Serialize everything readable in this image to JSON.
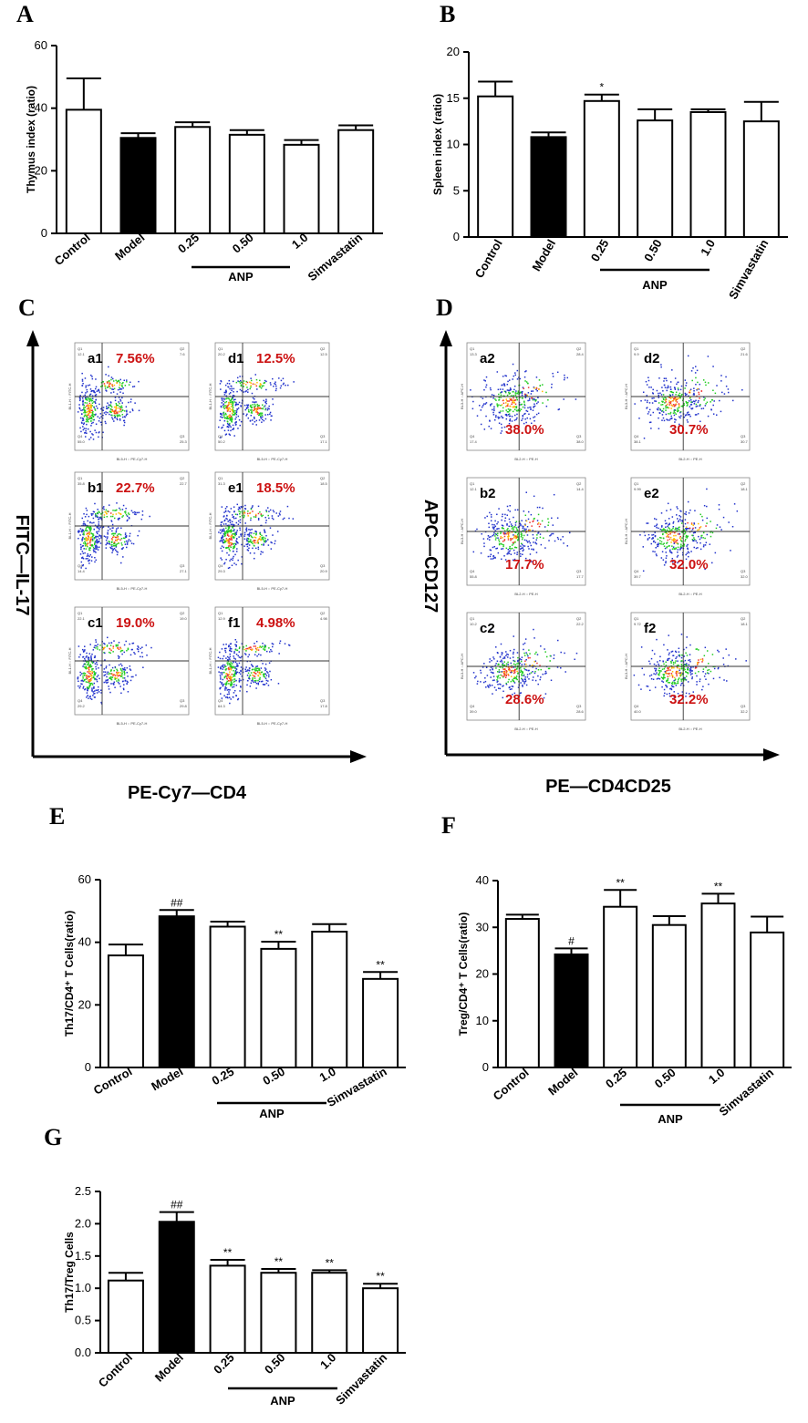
{
  "chart_data": [
    {
      "id": "A",
      "type": "bar",
      "panel_label": "A",
      "ylabel": "Thymus index (ratio)",
      "ylim": [
        0,
        60
      ],
      "yticks": [
        "0",
        "20",
        "40",
        "60"
      ],
      "categories": [
        "Control",
        "Model",
        "0.25",
        "0.50",
        "1.0",
        "Simvastatin"
      ],
      "group_label": "ANP",
      "values": [
        39.5,
        30.5,
        34,
        31.5,
        28.3,
        33
      ],
      "errors": [
        10,
        1.5,
        1.5,
        1.5,
        1.5,
        1.5
      ],
      "filled": [
        false,
        true,
        false,
        false,
        false,
        false
      ],
      "sig": [
        "",
        "",
        "",
        "",
        "",
        ""
      ]
    },
    {
      "id": "B",
      "type": "bar",
      "panel_label": "B",
      "ylabel": "Spleen index (ratio)",
      "ylim": [
        0,
        20
      ],
      "yticks": [
        "0",
        "5",
        "10",
        "15",
        "20"
      ],
      "categories": [
        "Control",
        "Model",
        "0.25",
        "0.50",
        "1.0",
        "Simvastatin"
      ],
      "group_label": "ANP",
      "values": [
        15.2,
        10.8,
        14.7,
        12.6,
        13.5,
        12.5
      ],
      "errors": [
        1.6,
        0.5,
        0.7,
        1.2,
        0.3,
        2.1
      ],
      "filled": [
        false,
        true,
        false,
        false,
        false,
        false
      ],
      "sig": [
        "",
        "",
        "*",
        "",
        "",
        ""
      ]
    },
    {
      "id": "E",
      "type": "bar",
      "panel_label": "E",
      "ylabel": "Th17/CD4⁺ T Cells(ratio)",
      "ylim": [
        0,
        60
      ],
      "yticks": [
        "0",
        "20",
        "40",
        "60"
      ],
      "categories": [
        "Control",
        "Model",
        "0.25",
        "0.50",
        "1.0",
        "Simvastatin"
      ],
      "group_label": "ANP",
      "values": [
        35.8,
        48.3,
        45,
        37.9,
        43.4,
        28.3
      ],
      "errors": [
        3.5,
        2,
        1.6,
        2.3,
        2.4,
        2.2
      ],
      "filled": [
        false,
        true,
        false,
        false,
        false,
        false
      ],
      "sig": [
        "",
        "##",
        "",
        "**",
        "",
        "**"
      ]
    },
    {
      "id": "F",
      "type": "bar",
      "panel_label": "F",
      "ylabel": "Treg/CD4⁺ T Cells(ratio)",
      "ylim": [
        0,
        40
      ],
      "yticks": [
        "0",
        "10",
        "20",
        "30",
        "40"
      ],
      "categories": [
        "Control",
        "Model",
        "0.25",
        "0.50",
        "1.0",
        "Simvastatin"
      ],
      "group_label": "ANP",
      "values": [
        31.8,
        24.2,
        34.4,
        30.5,
        35.1,
        28.9
      ],
      "errors": [
        0.9,
        1.3,
        3.6,
        1.9,
        2.1,
        3.4
      ],
      "filled": [
        false,
        true,
        false,
        false,
        false,
        false
      ],
      "sig": [
        "",
        "#",
        "**",
        "",
        "**",
        ""
      ]
    },
    {
      "id": "G",
      "type": "bar",
      "panel_label": "G",
      "ylabel": "Th17/Treg Cells",
      "ylim": [
        0,
        2.5
      ],
      "yticks": [
        "0.0",
        "0.5",
        "1.0",
        "1.5",
        "2.0",
        "2.5"
      ],
      "categories": [
        "Control",
        "Model",
        "0.25",
        "0.50",
        "1.0",
        "Simvastatin"
      ],
      "group_label": "ANP",
      "values": [
        1.12,
        2.03,
        1.35,
        1.24,
        1.24,
        1.0
      ],
      "errors": [
        0.12,
        0.15,
        0.09,
        0.06,
        0.04,
        0.07
      ],
      "filled": [
        false,
        true,
        false,
        false,
        false,
        false
      ],
      "sig": [
        "",
        "##",
        "**",
        "**",
        "**",
        "**"
      ]
    }
  ],
  "flow_panels": {
    "C": {
      "panel_label": "C",
      "y_axis_title": "FITC—IL-17",
      "x_axis_title": "PE-Cy7—CD4",
      "plots": [
        {
          "id": "a1",
          "pct": "7.56%",
          "q1": "12.1",
          "q2": "7.6",
          "q3": "25.3",
          "q4": "55.0",
          "xlabel": "BL5-H :: PE-Cy7-H",
          "ylabel": "BL1-H :: FITC-H"
        },
        {
          "id": "d1",
          "pct": "12.5%",
          "q1": "20.2",
          "q2": "12.5",
          "q3": "17.1",
          "q4": "50.2",
          "xlabel": "BL5-H :: PE-Cy7-H",
          "ylabel": "BL1-H :: FITC-H"
        },
        {
          "id": "b1",
          "pct": "22.7%",
          "q1": "35.8",
          "q2": "22.7",
          "q3": "27.1",
          "q4": "14.4",
          "xlabel": "BL5-H :: PE-Cy7-H",
          "ylabel": "BL1-H :: FITC-H"
        },
        {
          "id": "e1",
          "pct": "18.5%",
          "q1": "31.3",
          "q2": "18.5",
          "q3": "20.9",
          "q4": "29.3",
          "xlabel": "BL5-H :: PE-Cy7-H",
          "ylabel": "BL1-H :: FITC-H"
        },
        {
          "id": "c1",
          "pct": "19.0%",
          "q1": "22.1",
          "q2": "19.0",
          "q3": "29.8",
          "q4": "29.2",
          "xlabel": "BL5-H :: PE-Cy7-H",
          "ylabel": "BL1-H :: FITC-H"
        },
        {
          "id": "f1",
          "pct": "4.98%",
          "q1": "12.9",
          "q2": "4.98",
          "q3": "17.8",
          "q4": "64.3",
          "xlabel": "BL5-H :: PE-Cy7-H",
          "ylabel": "BL1-H :: FITC-H"
        }
      ]
    },
    "D": {
      "panel_label": "D",
      "y_axis_title": "APC—CD127",
      "x_axis_title": "PE—CD4CD25",
      "plots": [
        {
          "id": "a2",
          "pct": "38.0%",
          "q1": "13.3",
          "q2": "28.4",
          "q3": "38.0",
          "q4": "17.4",
          "xlabel": "BL2-H :: PE-H",
          "ylabel": "BL3-H :: APC-H"
        },
        {
          "id": "d2",
          "pct": "30.7%",
          "q1": "9.9",
          "q2": "21.6",
          "q3": "30.7",
          "q4": "38.1",
          "xlabel": "BL2-H :: PE-H",
          "ylabel": "BL3-H :: APC-H"
        },
        {
          "id": "b2",
          "pct": "17.7%",
          "q1": "12.1",
          "q2": "14.4",
          "q3": "17.7",
          "q4": "55.8",
          "xlabel": "BL2-H :: PE-H",
          "ylabel": "BL3-H :: APC-H"
        },
        {
          "id": "e2",
          "pct": "32.0%",
          "q1": "9.99",
          "q2": "18.1",
          "q3": "32.0",
          "q4": "39.7",
          "xlabel": "BL2-H :: PE-H",
          "ylabel": "BL3-H :: APC-H"
        },
        {
          "id": "c2",
          "pct": "28.6%",
          "q1": "10.2",
          "q2": "22.2",
          "q3": "28.6",
          "q4": "39.0",
          "xlabel": "BL2-H :: PE-H",
          "ylabel": "BL3-H :: APC-H"
        },
        {
          "id": "f2",
          "pct": "32.2%",
          "q1": "9.72",
          "q2": "18.1",
          "q3": "32.2",
          "q4": "40.0",
          "xlabel": "BL2-H :: PE-H",
          "ylabel": "BL3-H :: APC-H"
        }
      ]
    }
  },
  "colors": {
    "bar_fill_filled": "#000000",
    "bar_fill_open": "#ffffff",
    "pct_text": "#cc1111"
  }
}
